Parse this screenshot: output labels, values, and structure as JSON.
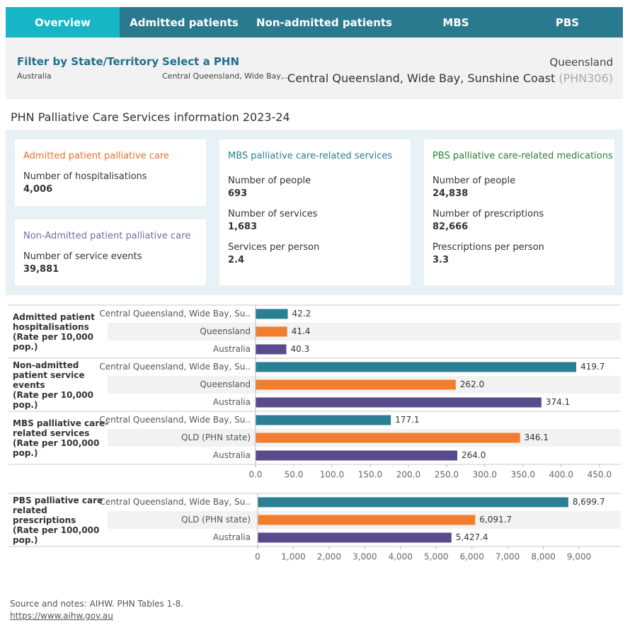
{
  "tabs": [
    "Overview",
    "Admitted patients",
    "Non-admitted patients",
    "MBS",
    "PBS"
  ],
  "filters": [
    {
      "label": "Filter by State/Territory",
      "value": "Australia"
    },
    {
      "label": "Select a PHN",
      "value": "Central Queensland, Wide Bay,.."
    }
  ],
  "selection": {
    "state": "Queensland",
    "phn": "Central Queensland, Wide Bay, Sunshine Coast",
    "code": "(PHN306)"
  },
  "section_title": "PHN Palliative Care Services information 2023-24",
  "cards": [
    {
      "title": "Admitted patient palliative care",
      "color": "#e8702a",
      "metrics": [
        {
          "label": "Number of hospitalisations",
          "value": "4,006"
        }
      ]
    },
    {
      "title": "Non-Admitted patient palliative care",
      "color": "#7b68a6",
      "metrics": [
        {
          "label": "Number of service events",
          "value": "39,881"
        }
      ]
    },
    {
      "title": "MBS palliative care-related services",
      "color": "#2a7f95",
      "metrics": [
        {
          "label": "Number of people",
          "value": "693"
        },
        {
          "label": "Number of services",
          "value": "1,683"
        },
        {
          "label": "Services per person",
          "value": "2.4"
        }
      ]
    },
    {
      "title": "PBS palliative care-related medications",
      "color": "#2e7d32",
      "metrics": [
        {
          "label": "Number of people",
          "value": "24,838"
        },
        {
          "label": "Number of prescriptions",
          "value": "82,666"
        },
        {
          "label": "Prescriptions per person",
          "value": "3.3"
        }
      ]
    }
  ],
  "chart_data": [
    {
      "type": "bar",
      "orientation": "horizontal",
      "colors": [
        "#2a7f95",
        "#f27d2c",
        "#594a8c"
      ],
      "xlim": [
        0,
        478
      ],
      "xticks": [
        {
          "value": 0,
          "label": "0.0"
        },
        {
          "value": 50,
          "label": "50.0"
        },
        {
          "value": 100,
          "label": "100.0"
        },
        {
          "value": 150,
          "label": "150.0"
        },
        {
          "value": 200,
          "label": "200.0"
        },
        {
          "value": 250,
          "label": "250.0"
        },
        {
          "value": 300,
          "label": "300.0"
        },
        {
          "value": 350,
          "label": "350.0"
        },
        {
          "value": 400,
          "label": "400.0"
        },
        {
          "value": 450,
          "label": "450.0"
        }
      ],
      "groups": [
        {
          "title": "Admitted patient hospitalisations",
          "unit": "(Rate per 10,000 pop.)",
          "categories": [
            "Central Queensland, Wide Bay, Su..",
            "Queensland",
            "Australia"
          ],
          "values": [
            42.2,
            41.4,
            40.3
          ],
          "value_labels": [
            "42.2",
            "41.4",
            "40.3"
          ]
        },
        {
          "title": "Non-admitted patient service events",
          "unit": "(Rate per 10,000 pop.)",
          "categories": [
            "Central Queensland, Wide Bay, Su..",
            "Queensland",
            "Australia"
          ],
          "values": [
            419.7,
            262.0,
            374.1
          ],
          "value_labels": [
            "419.7",
            "262.0",
            "374.1"
          ]
        },
        {
          "title": "MBS palliative care-related services",
          "unit": "(Rate per 100,000 pop.)",
          "categories": [
            "Central Queensland, Wide Bay, Su..",
            "QLD (PHN state)",
            "Australia"
          ],
          "values": [
            177.1,
            346.1,
            264.0
          ],
          "value_labels": [
            "177.1",
            "346.1",
            "264.0"
          ]
        }
      ]
    },
    {
      "type": "bar",
      "orientation": "horizontal",
      "colors": [
        "#2a7f95",
        "#f27d2c",
        "#594a8c"
      ],
      "xlim": [
        0,
        10170
      ],
      "xticks": [
        0,
        {
          "value": 1000,
          "label": "1,000"
        },
        {
          "value": 2000,
          "label": "2,000"
        },
        {
          "value": 3000,
          "label": "3,000"
        },
        {
          "value": 4000,
          "label": "4,000"
        },
        {
          "value": 5000,
          "label": "5,000"
        },
        {
          "value": 6000,
          "label": "6,000"
        },
        {
          "value": 7000,
          "label": "7,000"
        },
        {
          "value": 8000,
          "label": "8,000"
        },
        {
          "value": 9000,
          "label": "9,000"
        }
      ],
      "groups": [
        {
          "title": "PBS palliative care related prescriptions",
          "unit": "(Rate per 100,000 pop.)",
          "categories": [
            "Central Queensland, Wide Bay, Su..",
            "QLD (PHN state)",
            "Australia"
          ],
          "values": [
            8699.7,
            6091.7,
            5427.4
          ],
          "value_labels": [
            "8,699.7",
            "6,091.7",
            "5,427.4"
          ]
        }
      ]
    }
  ],
  "footer": {
    "source": "Source and notes: AIHW. PHN Tables 1-8.",
    "link": "https://www.aihw.gov.au"
  }
}
